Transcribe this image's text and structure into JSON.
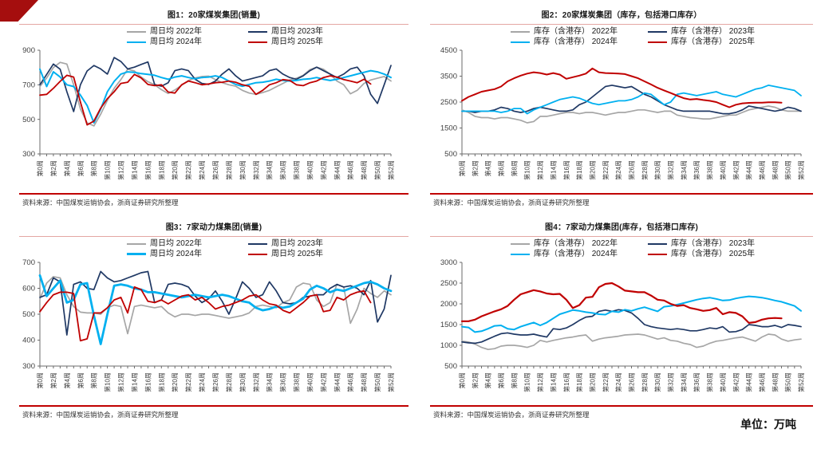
{
  "unit_label": "单位：万吨",
  "source": "资料来源：中国煤炭运销协会，浙商证券研究所整理",
  "colors": {
    "gray": "#A6A6A6",
    "navy": "#1F3864",
    "cyan": "#00B0F0",
    "red": "#C00000"
  },
  "x_tick_labels": [
    "第0周",
    "第2周",
    "第4周",
    "第6周",
    "第8周",
    "第10周",
    "第12周",
    "第14周",
    "第16周",
    "第18周",
    "第20周",
    "第22周",
    "第24周",
    "第26周",
    "第28周",
    "第30周",
    "第32周",
    "第34周",
    "第36周",
    "第38周",
    "第40周",
    "第42周",
    "第44周",
    "第46周",
    "第48周",
    "第50周",
    "第52周"
  ],
  "chart_data": [
    {
      "type": "line",
      "title": "图1：20家煤炭集团(销量)",
      "x_unit": "周 (week 0-52)",
      "ylim": [
        300,
        900
      ],
      "yticks": [
        300,
        500,
        700,
        900
      ],
      "grid": false,
      "legend_position": "top",
      "series": [
        {
          "name": "周日均 2022年",
          "color": "gray",
          "width": 1.7,
          "values": [
            690,
            740,
            800,
            830,
            820,
            700,
            560,
            480,
            462,
            530,
            610,
            680,
            730,
            790,
            780,
            745,
            718,
            700,
            672,
            650,
            670,
            698,
            725,
            740,
            748,
            750,
            730,
            712,
            700,
            692,
            668,
            652,
            645,
            655,
            668,
            688,
            708,
            728,
            738,
            755,
            788,
            802,
            790,
            762,
            722,
            700,
            648,
            668,
            708,
            728,
            738,
            748,
            722
          ]
        },
        {
          "name": "周日均 2023年",
          "color": "navy",
          "width": 1.7,
          "values": [
            700,
            760,
            820,
            790,
            660,
            545,
            700,
            780,
            812,
            792,
            762,
            858,
            835,
            792,
            802,
            818,
            832,
            702,
            692,
            712,
            782,
            792,
            782,
            732,
            708,
            702,
            722,
            762,
            792,
            752,
            722,
            732,
            742,
            752,
            782,
            792,
            762,
            742,
            732,
            752,
            782,
            802,
            782,
            762,
            742,
            762,
            792,
            802,
            752,
            645,
            592,
            700,
            812
          ]
        },
        {
          "name": "周日均 2024年",
          "color": "cyan",
          "width": 2.0,
          "values": [
            790,
            690,
            775,
            745,
            700,
            690,
            640,
            580,
            480,
            560,
            660,
            720,
            762,
            775,
            772,
            765,
            760,
            755,
            742,
            732,
            745,
            752,
            742,
            735,
            742,
            745,
            752,
            742,
            722,
            702,
            692,
            702,
            712,
            715,
            722,
            732,
            725,
            722,
            725,
            732,
            735,
            742,
            732,
            725,
            732,
            742,
            752,
            762,
            772,
            782,
            775,
            762,
            742
          ]
        },
        {
          "name": "周日均 2025年",
          "color": "red",
          "width": 1.8,
          "values": [
            640,
            645,
            680,
            720,
            755,
            745,
            600,
            468,
            490,
            565,
            620,
            660,
            708,
            715,
            760,
            740,
            702,
            695,
            700,
            658,
            652,
            700,
            722,
            712,
            700,
            705,
            712,
            715,
            722,
            715,
            700,
            692,
            645,
            668,
            700,
            712,
            730,
            725,
            700,
            695,
            712,
            722,
            742,
            752,
            745,
            730,
            722,
            712,
            732,
            705
          ]
        }
      ]
    },
    {
      "type": "line",
      "title": "图2：20家煤炭集团（库存，包括港口库存）",
      "x_unit": "周 (week 0-52)",
      "ylim": [
        500,
        4500
      ],
      "yticks": [
        500,
        1500,
        2500,
        3500,
        4500
      ],
      "grid": false,
      "legend_position": "top",
      "series": [
        {
          "name": "库存（含港存） 2022年",
          "color": "gray",
          "width": 1.7,
          "values": [
            2200,
            2100,
            1950,
            1900,
            1900,
            1850,
            1900,
            1900,
            1850,
            1800,
            1700,
            1750,
            1950,
            1950,
            2000,
            2050,
            2100,
            2100,
            2050,
            2100,
            2100,
            2050,
            2000,
            2050,
            2100,
            2100,
            2150,
            2200,
            2200,
            2150,
            2100,
            2150,
            2150,
            2000,
            1950,
            1900,
            1880,
            1850,
            1850,
            1900,
            1950,
            2000,
            2000,
            2100,
            2200,
            2250,
            2300,
            2350,
            2300,
            2200,
            2150,
            2150,
            2150
          ]
        },
        {
          "name": "库存（含港存） 2023年",
          "color": "navy",
          "width": 1.7,
          "values": [
            2150,
            2150,
            2100,
            2150,
            2150,
            2200,
            2300,
            2250,
            2150,
            2100,
            2150,
            2250,
            2300,
            2250,
            2200,
            2150,
            2150,
            2200,
            2400,
            2500,
            2700,
            2900,
            3100,
            3150,
            3100,
            3050,
            3100,
            2950,
            2800,
            2700,
            2550,
            2400,
            2300,
            2200,
            2150,
            2150,
            2150,
            2150,
            2150,
            2100,
            2050,
            2050,
            2100,
            2200,
            2350,
            2300,
            2250,
            2200,
            2150,
            2200,
            2300,
            2250,
            2150
          ]
        },
        {
          "name": "库存（含港存） 2024年",
          "color": "cyan",
          "width": 1.8,
          "values": [
            2150,
            2150,
            2150,
            2150,
            2150,
            2150,
            2100,
            2150,
            2250,
            2250,
            2050,
            2200,
            2300,
            2400,
            2500,
            2600,
            2650,
            2700,
            2650,
            2550,
            2450,
            2400,
            2450,
            2500,
            2550,
            2550,
            2600,
            2700,
            2850,
            2800,
            2600,
            2400,
            2500,
            2800,
            2850,
            2800,
            2750,
            2800,
            2850,
            2900,
            2800,
            2750,
            2700,
            2800,
            2900,
            3000,
            3050,
            3150,
            3100,
            3050,
            3000,
            2950,
            2750
          ]
        },
        {
          "name": "库存（含港存） 2025年",
          "color": "red",
          "width": 2.0,
          "values": [
            2550,
            2700,
            2800,
            2900,
            2950,
            3000,
            3100,
            3300,
            3420,
            3520,
            3600,
            3650,
            3620,
            3560,
            3620,
            3560,
            3400,
            3460,
            3520,
            3600,
            3800,
            3650,
            3620,
            3610,
            3600,
            3580,
            3500,
            3420,
            3300,
            3180,
            3050,
            2950,
            2850,
            2750,
            2650,
            2600,
            2620,
            2580,
            2550,
            2500,
            2400,
            2300,
            2400,
            2450,
            2470,
            2480,
            2480,
            2490,
            2490,
            2480
          ]
        }
      ]
    },
    {
      "type": "line",
      "title": "图3：7家动力煤集团(销量)",
      "x_unit": "周 (week 0-52)",
      "ylim": [
        300,
        700
      ],
      "yticks": [
        300,
        400,
        500,
        600,
        700
      ],
      "grid": false,
      "legend_position": "top",
      "series": [
        {
          "name": "周日均 2022年",
          "color": "gray",
          "width": 1.7,
          "values": [
            560,
            620,
            645,
            640,
            575,
            530,
            508,
            505,
            505,
            500,
            525,
            535,
            530,
            425,
            530,
            535,
            530,
            525,
            530,
            505,
            490,
            500,
            500,
            495,
            500,
            500,
            495,
            490,
            485,
            490,
            495,
            505,
            530,
            535,
            530,
            525,
            545,
            555,
            605,
            620,
            615,
            555,
            530,
            545,
            615,
            605,
            465,
            520,
            600,
            580,
            565,
            590,
            575
          ]
        },
        {
          "name": "周日均 2023年",
          "color": "navy",
          "width": 1.7,
          "values": [
            565,
            575,
            640,
            625,
            420,
            615,
            625,
            600,
            595,
            665,
            640,
            625,
            630,
            640,
            650,
            660,
            665,
            545,
            555,
            615,
            620,
            615,
            605,
            570,
            545,
            560,
            590,
            550,
            500,
            560,
            625,
            600,
            565,
            575,
            625,
            590,
            545,
            540,
            545,
            565,
            570,
            575,
            575,
            600,
            615,
            605,
            610,
            600,
            575,
            630,
            470,
            520,
            650
          ]
        },
        {
          "name": "周日均 2024年",
          "color": "cyan",
          "width": 2.8,
          "values": [
            650,
            570,
            600,
            630,
            545,
            555,
            615,
            620,
            495,
            385,
            500,
            610,
            615,
            610,
            600,
            595,
            585,
            585,
            580,
            575,
            570,
            565,
            570,
            575,
            570,
            565,
            570,
            575,
            570,
            560,
            550,
            545,
            525,
            515,
            520,
            530,
            525,
            530,
            545,
            560,
            595,
            610,
            600,
            585,
            595,
            590,
            600,
            610,
            620,
            625,
            615,
            600,
            590
          ]
        },
        {
          "name": "周日均 2025年",
          "color": "red",
          "width": 1.8,
          "values": [
            510,
            545,
            575,
            585,
            585,
            580,
            398,
            405,
            505,
            505,
            525,
            555,
            565,
            505,
            605,
            595,
            550,
            545,
            555,
            540,
            555,
            570,
            575,
            555,
            565,
            545,
            520,
            530,
            535,
            545,
            555,
            570,
            575,
            555,
            540,
            535,
            515,
            505,
            525,
            545,
            570,
            575,
            510,
            515,
            565,
            555,
            575,
            585,
            590,
            545
          ]
        }
      ]
    },
    {
      "type": "line",
      "title": "图4：7家动力煤集团(库存，包括港口库存)",
      "x_unit": "周 (week 0-52)",
      "ylim": [
        500,
        3000
      ],
      "yticks": [
        500,
        1000,
        1500,
        2000,
        2500,
        3000
      ],
      "grid": false,
      "legend_position": "top",
      "series": [
        {
          "name": "库存（含港存） 2022年",
          "color": "gray",
          "width": 1.7,
          "values": [
            1100,
            1080,
            1030,
            950,
            900,
            920,
            980,
            1000,
            1000,
            980,
            950,
            1000,
            1120,
            1080,
            1120,
            1150,
            1180,
            1200,
            1230,
            1250,
            1100,
            1150,
            1180,
            1200,
            1220,
            1250,
            1260,
            1270,
            1250,
            1200,
            1150,
            1180,
            1120,
            1100,
            1050,
            1020,
            950,
            980,
            1050,
            1100,
            1120,
            1150,
            1180,
            1200,
            1150,
            1100,
            1200,
            1270,
            1250,
            1150,
            1100,
            1130,
            1150
          ]
        },
        {
          "name": "库存（含港存） 2023年",
          "color": "navy",
          "width": 1.7,
          "values": [
            1080,
            1060,
            1050,
            1080,
            1150,
            1220,
            1280,
            1300,
            1270,
            1250,
            1250,
            1270,
            1230,
            1200,
            1400,
            1380,
            1420,
            1500,
            1600,
            1680,
            1700,
            1820,
            1850,
            1820,
            1860,
            1840,
            1780,
            1650,
            1500,
            1450,
            1420,
            1400,
            1380,
            1400,
            1380,
            1350,
            1350,
            1380,
            1420,
            1400,
            1450,
            1320,
            1330,
            1380,
            1500,
            1480,
            1450,
            1450,
            1480,
            1430,
            1500,
            1480,
            1450
          ]
        },
        {
          "name": "库存（含港存） 2024年",
          "color": "cyan",
          "width": 2.0,
          "values": [
            1450,
            1430,
            1320,
            1340,
            1400,
            1470,
            1480,
            1400,
            1380,
            1450,
            1500,
            1550,
            1480,
            1550,
            1650,
            1750,
            1800,
            1850,
            1830,
            1800,
            1780,
            1750,
            1740,
            1820,
            1800,
            1860,
            1830,
            1880,
            1920,
            1870,
            1820,
            1930,
            1950,
            1980,
            2020,
            2060,
            2100,
            2130,
            2150,
            2120,
            2080,
            2090,
            2130,
            2160,
            2180,
            2170,
            2150,
            2120,
            2080,
            2050,
            2000,
            1950,
            1830
          ]
        },
        {
          "name": "库存（含港存） 2025年",
          "color": "red",
          "width": 2.2,
          "values": [
            1580,
            1580,
            1620,
            1700,
            1760,
            1820,
            1870,
            1950,
            2100,
            2230,
            2280,
            2330,
            2300,
            2250,
            2230,
            2240,
            2100,
            1900,
            1970,
            2150,
            2170,
            2400,
            2480,
            2500,
            2420,
            2320,
            2300,
            2280,
            2280,
            2200,
            2100,
            2080,
            2000,
            1950,
            1970,
            1900,
            1870,
            1830,
            1850,
            1900,
            1750,
            1800,
            1780,
            1700,
            1540,
            1560,
            1620,
            1650,
            1660,
            1650
          ]
        }
      ]
    }
  ]
}
